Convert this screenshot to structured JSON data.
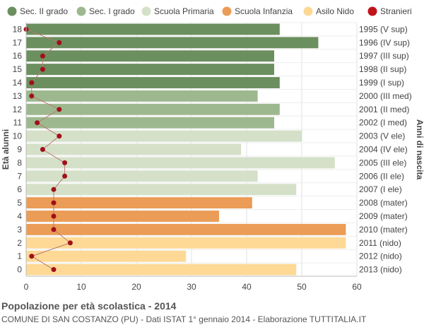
{
  "chart_data": {
    "type": "bar",
    "orientation": "horizontal",
    "title": "Popolazione per età scolastica - 2014",
    "subtitle": "COMUNE DI SAN COSTANZO (PU) - Dati ISTAT 1° gennaio 2014 - Elaborazione TUTTITALIA.IT",
    "ylabel": "Età alunni",
    "ylabel_right": "Anni di nascita",
    "xlim": [
      0,
      60
    ],
    "x_ticks": [
      0,
      10,
      20,
      30,
      40,
      50,
      60
    ],
    "grid": true,
    "legend_position": "top",
    "legend": [
      {
        "label": "Sec. II grado",
        "color": "#6b8f5e"
      },
      {
        "label": "Sec. I grado",
        "color": "#9db88e"
      },
      {
        "label": "Scuola Primaria",
        "color": "#d5e0c8"
      },
      {
        "label": "Scuola Infanzia",
        "color": "#eb9c56"
      },
      {
        "label": "Asilo Nido",
        "color": "#fdd995"
      },
      {
        "label": "Stranieri",
        "color": "#c0141c"
      }
    ],
    "rows": [
      {
        "age": "18",
        "year": "1995 (V sup)",
        "value": 46,
        "stranieri": 0,
        "group": 0
      },
      {
        "age": "17",
        "year": "1996 (IV sup)",
        "value": 53,
        "stranieri": 6,
        "group": 0
      },
      {
        "age": "16",
        "year": "1997 (III sup)",
        "value": 45,
        "stranieri": 3,
        "group": 0
      },
      {
        "age": "15",
        "year": "1998 (II sup)",
        "value": 45,
        "stranieri": 3,
        "group": 0
      },
      {
        "age": "14",
        "year": "1999 (I sup)",
        "value": 46,
        "stranieri": 1,
        "group": 0
      },
      {
        "age": "13",
        "year": "2000 (III med)",
        "value": 42,
        "stranieri": 1,
        "group": 1
      },
      {
        "age": "12",
        "year": "2001 (II med)",
        "value": 46,
        "stranieri": 6,
        "group": 1
      },
      {
        "age": "11",
        "year": "2002 (I med)",
        "value": 45,
        "stranieri": 2,
        "group": 1
      },
      {
        "age": "10",
        "year": "2003 (V ele)",
        "value": 50,
        "stranieri": 6,
        "group": 2
      },
      {
        "age": "9",
        "year": "2004 (IV ele)",
        "value": 39,
        "stranieri": 3,
        "group": 2
      },
      {
        "age": "8",
        "year": "2005 (III ele)",
        "value": 56,
        "stranieri": 7,
        "group": 2
      },
      {
        "age": "7",
        "year": "2006 (II ele)",
        "value": 42,
        "stranieri": 7,
        "group": 2
      },
      {
        "age": "6",
        "year": "2007 (I ele)",
        "value": 49,
        "stranieri": 5,
        "group": 2
      },
      {
        "age": "5",
        "year": "2008 (mater)",
        "value": 41,
        "stranieri": 5,
        "group": 3
      },
      {
        "age": "4",
        "year": "2009 (mater)",
        "value": 35,
        "stranieri": 5,
        "group": 3
      },
      {
        "age": "3",
        "year": "2010 (mater)",
        "value": 58,
        "stranieri": 5,
        "group": 3
      },
      {
        "age": "2",
        "year": "2011 (nido)",
        "value": 58,
        "stranieri": 8,
        "group": 4
      },
      {
        "age": "1",
        "year": "2012 (nido)",
        "value": 29,
        "stranieri": 1,
        "group": 4
      },
      {
        "age": "0",
        "year": "2013 (nido)",
        "value": 49,
        "stranieri": 5,
        "group": 4
      }
    ]
  }
}
